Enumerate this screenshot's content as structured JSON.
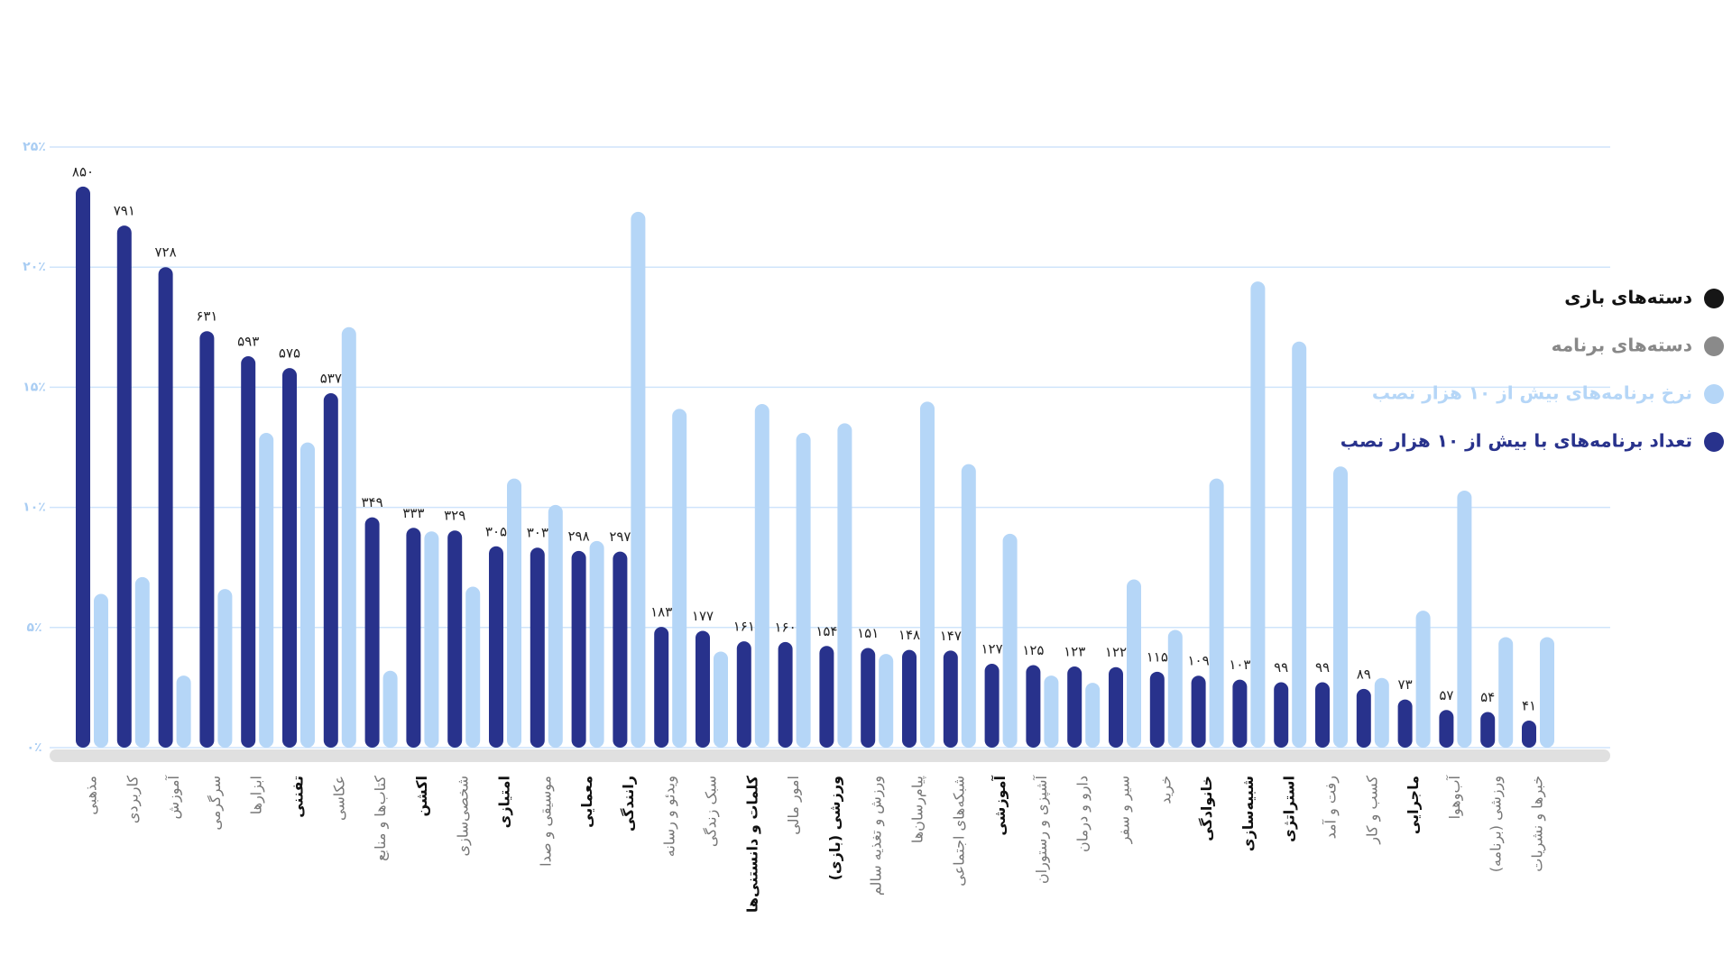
{
  "chart_data": {
    "type": "bar",
    "categories": [
      "مذهبی",
      "کاربردی",
      "آموزش",
      "سرگرمی",
      "ابزارها",
      "تفننی",
      "عکاسی",
      "کتاب‌ها و منابع",
      "اکشن",
      "شخصی‌سازی",
      "امتیازی",
      "موسیقی و صدا",
      "معمایی",
      "رانندگی",
      "ویدئو و رسانه",
      "سبک زندگی",
      "کلمات و دانستنی‌ها",
      "امور مالی",
      "ورزشی (بازی)",
      "ورزش و تغذیه سالم",
      "پیام‌رسان‌ها",
      "شبکه‌های اجتماعی",
      "آموزشی",
      "آشپزی و رستوران",
      "دارو و درمان",
      "سیر و سفر",
      "خرید",
      "خانوادگی",
      "شبیه‌سازی",
      "استراتژی",
      "رفت و آمد",
      "کسب و کار",
      "ماجرایی",
      "آب‌وهوا",
      "ورزشی (برنامه)",
      "خبرها و نشریات"
    ],
    "bold": [
      false,
      false,
      false,
      false,
      false,
      true,
      false,
      false,
      true,
      false,
      true,
      false,
      true,
      true,
      false,
      false,
      true,
      false,
      true,
      false,
      false,
      false,
      true,
      false,
      false,
      false,
      false,
      true,
      true,
      true,
      false,
      false,
      true,
      false,
      false,
      false
    ],
    "legend_groups": [
      {
        "name": "دسته‌های بازی",
        "color": "#161616"
      },
      {
        "name": "دسته‌های برنامه",
        "color": "#8a8a8a"
      }
    ],
    "series": [
      {
        "name": "تعداد برنامه‌های با بیش از ۱۰ هزار نصب",
        "color": "#28328c",
        "axis": "y2",
        "values": [
          850,
          791,
          728,
          631,
          593,
          575,
          537,
          349,
          333,
          329,
          305,
          303,
          298,
          297,
          183,
          177,
          161,
          160,
          154,
          151,
          148,
          147,
          127,
          125,
          123,
          122,
          115,
          109,
          103,
          99,
          99,
          89,
          73,
          57,
          54,
          41
        ],
        "value_labels": [
          "۸۵۰",
          "۷۹۱",
          "۷۲۸",
          "۶۳۱",
          "۵۹۳",
          "۵۷۵",
          "۵۳۷",
          "۳۴۹",
          "۳۳۳",
          "۳۲۹",
          "۳۰۵",
          "۳۰۳",
          "۲۹۸",
          "۲۹۷",
          "۱۸۳",
          "۱۷۷",
          "۱۶۱",
          "۱۶۰",
          "۱۵۴",
          "۱۵۱",
          "۱۴۸",
          "۱۴۷",
          "۱۲۷",
          "۱۲۵",
          "۱۲۳",
          "۱۲۲",
          "۱۱۵",
          "۱۰۹",
          "۱۰۳",
          "۹۹",
          "۹۹",
          "۸۹",
          "۷۳",
          "۵۷",
          "۵۴",
          "۴۱"
        ]
      },
      {
        "name": "نرخ برنامه‌های بیش از ۱۰ هزار نصب",
        "color": "#b5d6f7",
        "values": [
          6.4,
          7.1,
          3.0,
          6.6,
          13.1,
          12.7,
          17.5,
          3.2,
          9.0,
          6.7,
          11.2,
          10.1,
          8.6,
          22.3,
          14.1,
          4.0,
          14.3,
          13.1,
          13.5,
          3.9,
          14.4,
          11.8,
          8.9,
          3.0,
          2.7,
          7.0,
          4.9,
          11.2,
          19.4,
          16.9,
          11.7,
          2.9,
          5.7,
          10.7,
          4.6,
          4.6
        ]
      }
    ],
    "ylim": [
      0,
      25
    ],
    "yticks": [
      {
        "value": 0,
        "label": "۰٪"
      },
      {
        "value": 5,
        "label": "۵٪"
      },
      {
        "value": 10,
        "label": "۱۰٪"
      },
      {
        "value": 15,
        "label": "۱۵٪"
      },
      {
        "value": 20,
        "label": "۲۰٪"
      },
      {
        "value": 25,
        "label": "۲۵٪"
      }
    ],
    "y2lim": [
      0,
      910
    ],
    "grid": true
  }
}
